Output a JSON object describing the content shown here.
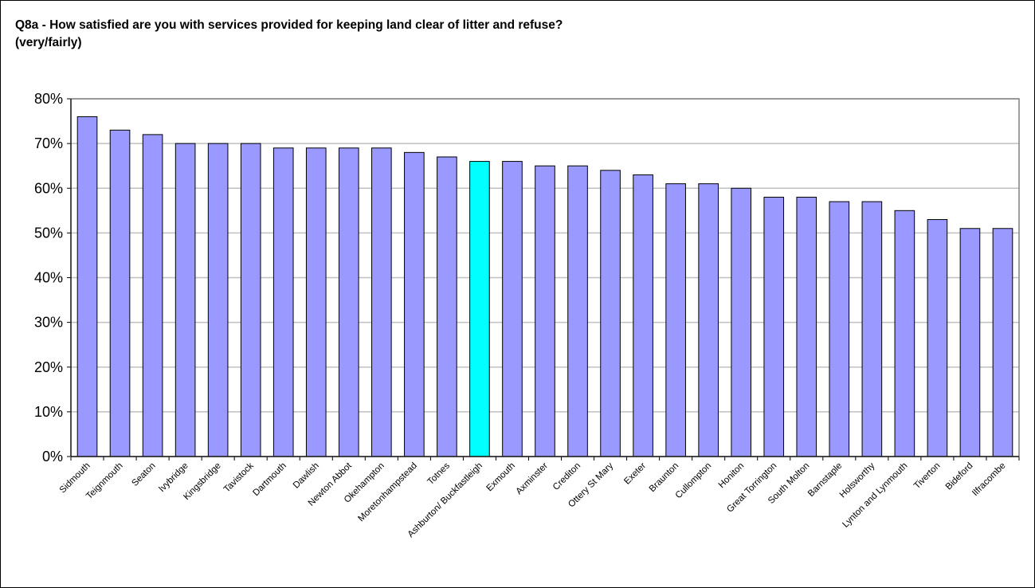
{
  "chart_data": {
    "type": "bar",
    "title_line1": "Q8a - How satisfied are you with services provided for keeping land clear of litter and refuse?",
    "title_line2": "(very/fairly)",
    "categories": [
      "Sidmouth",
      "Teignmouth",
      "Seaton",
      "Ivybridge",
      "Kingsbridge",
      "Tavistock",
      "Dartmouth",
      "Dawlish",
      "Newton Abbot",
      "Okehampton",
      "Moretonhampstead",
      "Totnes",
      "Ashburton/ Buckfastleigh",
      "Exmouth",
      "Axminster",
      "Crediton",
      "Ottery St Mary",
      "Exeter",
      "Braunton",
      "Cullompton",
      "Honiton",
      "Great Torrington",
      "South Molton",
      "Barnstaple",
      "Holsworthy",
      "Lynton and Lynmouth",
      "Tiverton",
      "Bideford",
      "Ilfracombe"
    ],
    "values": [
      76,
      73,
      72,
      70,
      70,
      70,
      69,
      69,
      69,
      69,
      68,
      67,
      66,
      66,
      65,
      65,
      64,
      63,
      61,
      61,
      60,
      58,
      58,
      57,
      57,
      55,
      53,
      51,
      51
    ],
    "highlight_category": "Ashburton/ Buckfastleigh",
    "ylim": [
      0,
      80
    ],
    "yticks": [
      "0%",
      "10%",
      "20%",
      "30%",
      "40%",
      "50%",
      "60%",
      "70%",
      "80%"
    ],
    "grid": true,
    "legend": "none",
    "colors": {
      "bar": "#9999ff",
      "highlight": "#00ffff",
      "edge": "#000000",
      "grid": "#c0c0c0"
    }
  }
}
